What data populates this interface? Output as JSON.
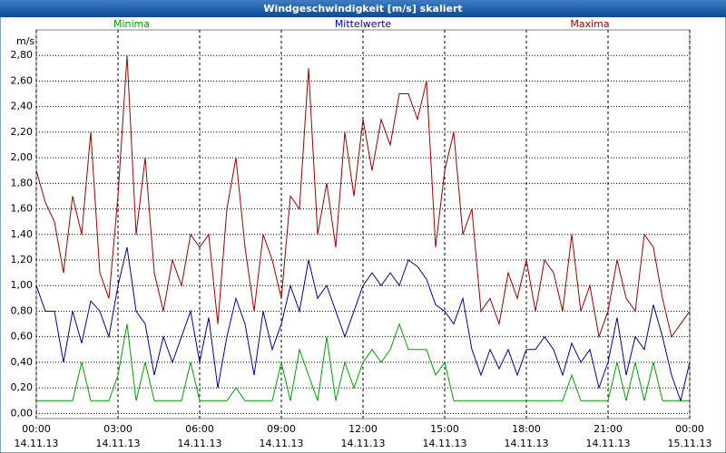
{
  "chart_data": {
    "type": "line",
    "title": "Windgeschwindigkeit [m/s] skaliert",
    "y_label": "m/s",
    "xlim": [
      0,
      1440
    ],
    "ylim": [
      -0.04,
      3.0
    ],
    "grid": true,
    "xticks": [
      {
        "value": 0,
        "label": "00:00",
        "date": "14.11.13"
      },
      {
        "value": 180,
        "label": "03:00",
        "date": "14.11.13"
      },
      {
        "value": 360,
        "label": "06:00",
        "date": "14.11.13"
      },
      {
        "value": 540,
        "label": "09:00",
        "date": "14.11.13"
      },
      {
        "value": 720,
        "label": "12:00",
        "date": "14.11.13"
      },
      {
        "value": 900,
        "label": "15:00",
        "date": "14.11.13"
      },
      {
        "value": 1080,
        "label": "18:00",
        "date": "14.11.13"
      },
      {
        "value": 1260,
        "label": "21:00",
        "date": "14.11.13"
      },
      {
        "value": 1440,
        "label": "00:00",
        "date": "15.11.13"
      }
    ],
    "yticks": [
      {
        "value": 0,
        "label": "0,00"
      },
      {
        "value": 0.2,
        "label": "0,20"
      },
      {
        "value": 0.4,
        "label": "0,40"
      },
      {
        "value": 0.6,
        "label": "0,60"
      },
      {
        "value": 0.8,
        "label": "0,80"
      },
      {
        "value": 1.0,
        "label": "1,00"
      },
      {
        "value": 1.2,
        "label": "1,20"
      },
      {
        "value": 1.4,
        "label": "1,40"
      },
      {
        "value": 1.6,
        "label": "1,60"
      },
      {
        "value": 1.8,
        "label": "1,80"
      },
      {
        "value": 2.0,
        "label": "2,00"
      },
      {
        "value": 2.2,
        "label": "2,20"
      },
      {
        "value": 2.4,
        "label": "2,40"
      },
      {
        "value": 2.6,
        "label": "2,60"
      },
      {
        "value": 2.8,
        "label": "2,80"
      }
    ],
    "x": [
      0,
      20,
      40,
      60,
      80,
      100,
      120,
      140,
      160,
      180,
      200,
      220,
      240,
      260,
      280,
      300,
      320,
      340,
      360,
      380,
      400,
      420,
      440,
      460,
      480,
      500,
      520,
      540,
      560,
      580,
      600,
      620,
      640,
      660,
      680,
      700,
      720,
      740,
      760,
      780,
      800,
      820,
      840,
      860,
      880,
      900,
      920,
      940,
      960,
      980,
      1000,
      1020,
      1040,
      1060,
      1080,
      1100,
      1120,
      1140,
      1160,
      1180,
      1200,
      1220,
      1240,
      1260,
      1280,
      1300,
      1320,
      1340,
      1360,
      1380,
      1400,
      1420,
      1440
    ],
    "series": [
      {
        "name": "Minima",
        "color": "#00a000",
        "position": "left",
        "values": [
          0.1,
          0.1,
          0.1,
          0.1,
          0.1,
          0.4,
          0.1,
          0.1,
          0.1,
          0.3,
          0.7,
          0.1,
          0.4,
          0.1,
          0.1,
          0.1,
          0.1,
          0.4,
          0.1,
          0.1,
          0.1,
          0.1,
          0.2,
          0.1,
          0.1,
          0.1,
          0.1,
          0.4,
          0.1,
          0.5,
          0.3,
          0.1,
          0.6,
          0.1,
          0.4,
          0.2,
          0.4,
          0.5,
          0.4,
          0.5,
          0.7,
          0.5,
          0.5,
          0.5,
          0.3,
          0.4,
          0.1,
          0.1,
          0.1,
          0.1,
          0.1,
          0.1,
          0.1,
          0.1,
          0.1,
          0.1,
          0.1,
          0.1,
          0.1,
          0.3,
          0.1,
          0.1,
          0.1,
          0.1,
          0.4,
          0.1,
          0.4,
          0.1,
          0.4,
          0.1,
          0.1,
          0.1,
          0.1
        ]
      },
      {
        "name": "Mittelwerte",
        "color": "#0000a0",
        "position": "center",
        "values": [
          1.0,
          0.8,
          0.8,
          0.4,
          0.8,
          0.55,
          0.88,
          0.8,
          0.6,
          1.0,
          1.3,
          0.8,
          0.7,
          0.3,
          0.6,
          0.4,
          0.6,
          0.8,
          0.4,
          0.75,
          0.2,
          0.6,
          0.9,
          0.7,
          0.3,
          0.8,
          0.5,
          0.7,
          1.0,
          0.8,
          1.2,
          0.9,
          1.0,
          0.8,
          0.6,
          0.8,
          1.0,
          1.1,
          1.0,
          1.1,
          1.0,
          1.2,
          1.15,
          1.05,
          0.85,
          0.8,
          0.7,
          0.9,
          0.5,
          0.3,
          0.5,
          0.35,
          0.5,
          0.3,
          0.5,
          0.5,
          0.6,
          0.5,
          0.3,
          0.55,
          0.4,
          0.5,
          0.2,
          0.4,
          0.75,
          0.3,
          0.6,
          0.5,
          0.85,
          0.6,
          0.3,
          0.1,
          0.4
        ]
      },
      {
        "name": "Maxima",
        "color": "#a00000",
        "position": "right",
        "values": [
          1.9,
          1.65,
          1.5,
          1.1,
          1.7,
          1.4,
          2.2,
          1.1,
          0.9,
          1.7,
          2.8,
          1.4,
          2.0,
          1.1,
          0.8,
          1.2,
          1.0,
          1.4,
          1.3,
          1.4,
          0.7,
          1.6,
          2.0,
          1.3,
          0.8,
          1.4,
          1.2,
          0.9,
          1.7,
          1.6,
          2.7,
          1.4,
          1.8,
          1.3,
          2.2,
          1.7,
          2.3,
          1.9,
          2.3,
          2.1,
          2.5,
          2.5,
          2.3,
          2.6,
          1.3,
          1.9,
          2.2,
          1.4,
          1.6,
          0.8,
          0.9,
          0.7,
          1.1,
          0.9,
          1.2,
          0.8,
          1.2,
          1.1,
          0.8,
          1.4,
          0.8,
          1.0,
          0.6,
          0.8,
          1.2,
          0.9,
          0.8,
          1.4,
          1.3,
          0.9,
          0.6,
          0.7,
          0.8
        ]
      }
    ]
  }
}
